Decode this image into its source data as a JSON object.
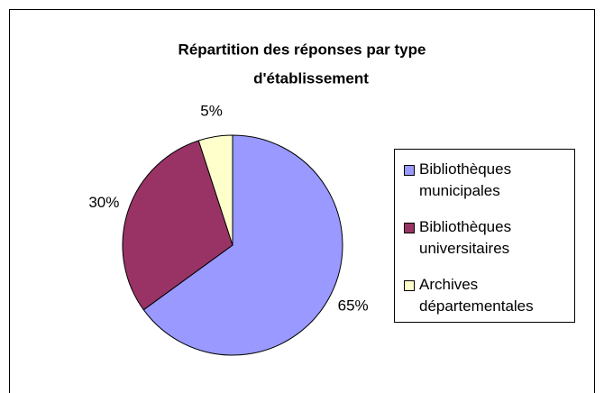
{
  "chart_data": {
    "type": "pie",
    "title": [
      "Répartition des réponses par type",
      "d'établissement"
    ],
    "categories": [
      "Bibliothèques municipales",
      "Bibliothèques universitaires",
      "Archives départementales"
    ],
    "values": [
      65,
      30,
      5
    ],
    "value_labels": [
      "65%",
      "30%",
      "5%"
    ],
    "colors": [
      "#9999ff",
      "#993366",
      "#ffffcc"
    ],
    "legend": "right"
  }
}
